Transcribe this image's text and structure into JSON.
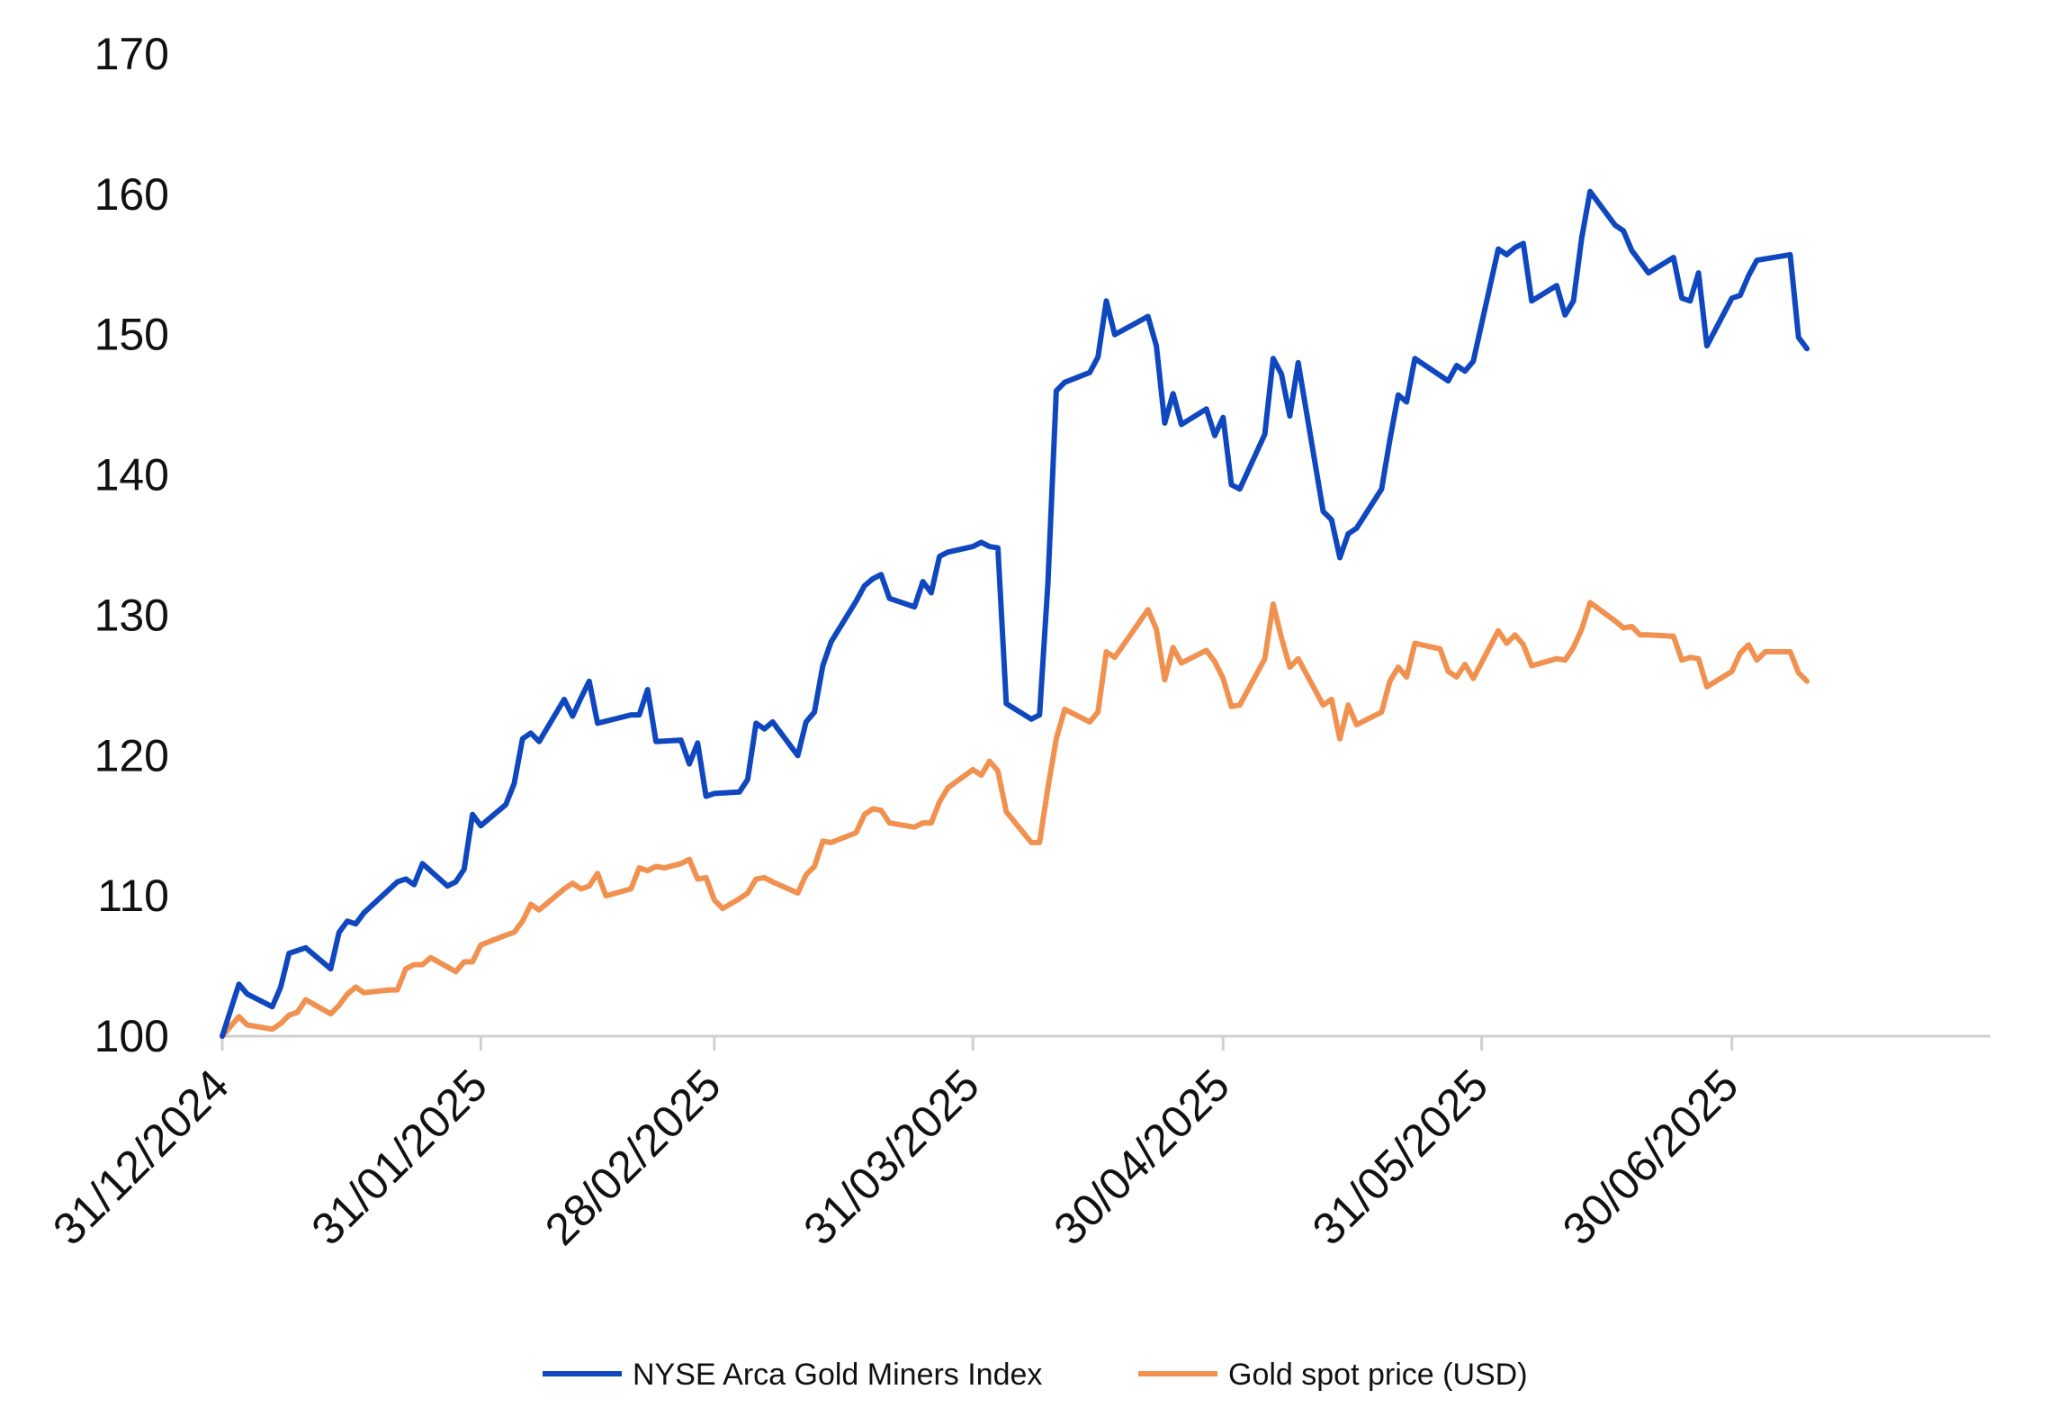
{
  "chart_data": {
    "type": "line",
    "title": "",
    "xlabel": "",
    "ylabel": "",
    "ylim": [
      100,
      170
    ],
    "yticks": [
      100,
      110,
      120,
      130,
      140,
      150,
      160,
      170
    ],
    "xlim": [
      "2024-12-31",
      "2025-07-31"
    ],
    "xtick_labels": [
      "31/12/2024",
      "31/01/2025",
      "28/02/2025",
      "31/03/2025",
      "30/04/2025",
      "31/05/2025",
      "30/06/2025"
    ],
    "xtick_dates": [
      "2024-12-31",
      "2025-01-31",
      "2025-02-28",
      "2025-03-31",
      "2025-04-30",
      "2025-05-31",
      "2025-06-30"
    ],
    "grid": false,
    "legend_position": "bottom",
    "series": [
      {
        "name": "NYSE Arca Gold Miners Index",
        "color": "#0f47bf",
        "points": [
          [
            "2024-12-31",
            100.0
          ],
          [
            "2025-01-02",
            103.7
          ],
          [
            "2025-01-03",
            103.0
          ],
          [
            "2025-01-06",
            102.1
          ],
          [
            "2025-01-07",
            103.5
          ],
          [
            "2025-01-08",
            105.9
          ],
          [
            "2025-01-10",
            106.3
          ],
          [
            "2025-01-13",
            104.8
          ],
          [
            "2025-01-14",
            107.4
          ],
          [
            "2025-01-15",
            108.2
          ],
          [
            "2025-01-16",
            108.0
          ],
          [
            "2025-01-17",
            108.8
          ],
          [
            "2025-01-21",
            111.0
          ],
          [
            "2025-01-22",
            111.2
          ],
          [
            "2025-01-23",
            110.8
          ],
          [
            "2025-01-24",
            112.3
          ],
          [
            "2025-01-27",
            110.7
          ],
          [
            "2025-01-28",
            111.0
          ],
          [
            "2025-01-29",
            111.9
          ],
          [
            "2025-01-30",
            115.8
          ],
          [
            "2025-01-31",
            115.0
          ],
          [
            "2025-02-03",
            116.5
          ],
          [
            "2025-02-04",
            118.0
          ],
          [
            "2025-02-05",
            121.2
          ],
          [
            "2025-02-06",
            121.6
          ],
          [
            "2025-02-07",
            121.0
          ],
          [
            "2025-02-10",
            124.0
          ],
          [
            "2025-02-11",
            122.8
          ],
          [
            "2025-02-12",
            124.1
          ],
          [
            "2025-02-13",
            125.3
          ],
          [
            "2025-02-14",
            122.3
          ],
          [
            "2025-02-18",
            122.9
          ],
          [
            "2025-02-19",
            122.9
          ],
          [
            "2025-02-20",
            124.7
          ],
          [
            "2025-02-21",
            121.0
          ],
          [
            "2025-02-24",
            121.1
          ],
          [
            "2025-02-25",
            119.4
          ],
          [
            "2025-02-26",
            120.9
          ],
          [
            "2025-02-27",
            117.1
          ],
          [
            "2025-02-28",
            117.3
          ],
          [
            "2025-03-03",
            117.4
          ],
          [
            "2025-03-04",
            118.3
          ],
          [
            "2025-03-05",
            122.3
          ],
          [
            "2025-03-06",
            121.9
          ],
          [
            "2025-03-07",
            122.4
          ],
          [
            "2025-03-10",
            120.0
          ],
          [
            "2025-03-11",
            122.4
          ],
          [
            "2025-03-12",
            123.1
          ],
          [
            "2025-03-13",
            126.4
          ],
          [
            "2025-03-14",
            128.1
          ],
          [
            "2025-03-17",
            131.0
          ],
          [
            "2025-03-18",
            132.1
          ],
          [
            "2025-03-19",
            132.6
          ],
          [
            "2025-03-20",
            132.9
          ],
          [
            "2025-03-21",
            131.2
          ],
          [
            "2025-03-24",
            130.6
          ],
          [
            "2025-03-25",
            132.4
          ],
          [
            "2025-03-26",
            131.6
          ],
          [
            "2025-03-27",
            134.2
          ],
          [
            "2025-03-28",
            134.5
          ],
          [
            "2025-03-31",
            134.9
          ],
          [
            "2025-04-01",
            135.2
          ],
          [
            "2025-04-02",
            134.9
          ],
          [
            "2025-04-03",
            134.8
          ],
          [
            "2025-04-04",
            123.7
          ],
          [
            "2025-04-07",
            122.6
          ],
          [
            "2025-04-08",
            122.9
          ],
          [
            "2025-04-09",
            132.3
          ],
          [
            "2025-04-10",
            146.0
          ],
          [
            "2025-04-11",
            146.6
          ],
          [
            "2025-04-14",
            147.3
          ],
          [
            "2025-04-15",
            148.4
          ],
          [
            "2025-04-16",
            152.4
          ],
          [
            "2025-04-17",
            150.0
          ],
          [
            "2025-04-21",
            151.3
          ],
          [
            "2025-04-22",
            149.2
          ],
          [
            "2025-04-23",
            143.7
          ],
          [
            "2025-04-24",
            145.8
          ],
          [
            "2025-04-25",
            143.6
          ],
          [
            "2025-04-28",
            144.7
          ],
          [
            "2025-04-29",
            142.8
          ],
          [
            "2025-04-30",
            144.1
          ],
          [
            "2025-05-01",
            139.3
          ],
          [
            "2025-05-02",
            139.0
          ],
          [
            "2025-05-05",
            142.9
          ],
          [
            "2025-05-06",
            148.3
          ],
          [
            "2025-05-07",
            147.2
          ],
          [
            "2025-05-08",
            144.2
          ],
          [
            "2025-05-09",
            148.0
          ],
          [
            "2025-05-12",
            137.4
          ],
          [
            "2025-05-13",
            136.8
          ],
          [
            "2025-05-14",
            134.1
          ],
          [
            "2025-05-15",
            135.8
          ],
          [
            "2025-05-16",
            136.2
          ],
          [
            "2025-05-19",
            139.0
          ],
          [
            "2025-05-20",
            142.5
          ],
          [
            "2025-05-21",
            145.7
          ],
          [
            "2025-05-22",
            145.2
          ],
          [
            "2025-05-23",
            148.3
          ],
          [
            "2025-05-27",
            146.7
          ],
          [
            "2025-05-28",
            147.8
          ],
          [
            "2025-05-29",
            147.4
          ],
          [
            "2025-05-30",
            148.1
          ],
          [
            "2025-06-02",
            156.1
          ],
          [
            "2025-06-03",
            155.7
          ],
          [
            "2025-06-04",
            156.2
          ],
          [
            "2025-06-05",
            156.5
          ],
          [
            "2025-06-06",
            152.4
          ],
          [
            "2025-06-09",
            153.5
          ],
          [
            "2025-06-10",
            151.4
          ],
          [
            "2025-06-11",
            152.4
          ],
          [
            "2025-06-12",
            156.9
          ],
          [
            "2025-06-13",
            160.2
          ],
          [
            "2025-06-16",
            157.8
          ],
          [
            "2025-06-17",
            157.4
          ],
          [
            "2025-06-18",
            156.0
          ],
          [
            "2025-06-20",
            154.4
          ],
          [
            "2025-06-23",
            155.5
          ],
          [
            "2025-06-24",
            152.6
          ],
          [
            "2025-06-25",
            152.4
          ],
          [
            "2025-06-26",
            154.4
          ],
          [
            "2025-06-27",
            149.2
          ],
          [
            "2025-06-30",
            152.6
          ],
          [
            "2025-07-01",
            152.8
          ],
          [
            "2025-07-02",
            154.2
          ],
          [
            "2025-07-03",
            155.3
          ],
          [
            "2025-07-07",
            155.7
          ],
          [
            "2025-07-08",
            149.8
          ],
          [
            "2025-07-09",
            149.0
          ]
        ]
      },
      {
        "name": "Gold spot price (USD)",
        "color": "#f0914f",
        "points": [
          [
            "2024-12-31",
            100.0
          ],
          [
            "2025-01-02",
            101.4
          ],
          [
            "2025-01-03",
            100.8
          ],
          [
            "2025-01-06",
            100.5
          ],
          [
            "2025-01-07",
            100.9
          ],
          [
            "2025-01-08",
            101.5
          ],
          [
            "2025-01-09",
            101.7
          ],
          [
            "2025-01-10",
            102.6
          ],
          [
            "2025-01-13",
            101.6
          ],
          [
            "2025-01-14",
            102.2
          ],
          [
            "2025-01-15",
            103.0
          ],
          [
            "2025-01-16",
            103.5
          ],
          [
            "2025-01-17",
            103.1
          ],
          [
            "2025-01-20",
            103.3
          ],
          [
            "2025-01-21",
            103.3
          ],
          [
            "2025-01-22",
            104.8
          ],
          [
            "2025-01-23",
            105.1
          ],
          [
            "2025-01-24",
            105.1
          ],
          [
            "2025-01-25",
            105.6
          ],
          [
            "2025-01-28",
            104.6
          ],
          [
            "2025-01-29",
            105.3
          ],
          [
            "2025-01-30",
            105.3
          ],
          [
            "2025-01-31",
            106.5
          ],
          [
            "2025-02-03",
            107.2
          ],
          [
            "2025-02-04",
            107.4
          ],
          [
            "2025-02-05",
            108.2
          ],
          [
            "2025-02-06",
            109.4
          ],
          [
            "2025-02-07",
            109.0
          ],
          [
            "2025-02-10",
            110.5
          ],
          [
            "2025-02-11",
            110.9
          ],
          [
            "2025-02-12",
            110.5
          ],
          [
            "2025-02-13",
            110.7
          ],
          [
            "2025-02-14",
            111.6
          ],
          [
            "2025-02-15",
            110.0
          ],
          [
            "2025-02-18",
            110.5
          ],
          [
            "2025-02-19",
            112.0
          ],
          [
            "2025-02-20",
            111.8
          ],
          [
            "2025-02-21",
            112.1
          ],
          [
            "2025-02-22",
            112.0
          ],
          [
            "2025-02-24",
            112.3
          ],
          [
            "2025-02-25",
            112.6
          ],
          [
            "2025-02-26",
            111.2
          ],
          [
            "2025-02-27",
            111.3
          ],
          [
            "2025-02-28",
            109.7
          ],
          [
            "2025-03-01",
            109.1
          ],
          [
            "2025-03-03",
            109.8
          ],
          [
            "2025-03-04",
            110.2
          ],
          [
            "2025-03-05",
            111.2
          ],
          [
            "2025-03-06",
            111.3
          ],
          [
            "2025-03-07",
            111.0
          ],
          [
            "2025-03-10",
            110.2
          ],
          [
            "2025-03-11",
            111.5
          ],
          [
            "2025-03-12",
            112.1
          ],
          [
            "2025-03-13",
            113.9
          ],
          [
            "2025-03-14",
            113.8
          ],
          [
            "2025-03-17",
            114.5
          ],
          [
            "2025-03-18",
            115.8
          ],
          [
            "2025-03-19",
            116.2
          ],
          [
            "2025-03-20",
            116.1
          ],
          [
            "2025-03-21",
            115.2
          ],
          [
            "2025-03-24",
            114.9
          ],
          [
            "2025-03-25",
            115.2
          ],
          [
            "2025-03-26",
            115.2
          ],
          [
            "2025-03-27",
            116.7
          ],
          [
            "2025-03-28",
            117.7
          ],
          [
            "2025-03-31",
            119.0
          ],
          [
            "2025-04-01",
            118.6
          ],
          [
            "2025-04-02",
            119.6
          ],
          [
            "2025-04-03",
            118.9
          ],
          [
            "2025-04-04",
            116.0
          ],
          [
            "2025-04-07",
            113.8
          ],
          [
            "2025-04-08",
            113.8
          ],
          [
            "2025-04-09",
            117.7
          ],
          [
            "2025-04-10",
            121.2
          ],
          [
            "2025-04-11",
            123.3
          ],
          [
            "2025-04-14",
            122.4
          ],
          [
            "2025-04-15",
            123.1
          ],
          [
            "2025-04-16",
            127.4
          ],
          [
            "2025-04-17",
            127.0
          ],
          [
            "2025-04-21",
            130.4
          ],
          [
            "2025-04-22",
            129.0
          ],
          [
            "2025-04-23",
            125.4
          ],
          [
            "2025-04-24",
            127.7
          ],
          [
            "2025-04-25",
            126.6
          ],
          [
            "2025-04-28",
            127.5
          ],
          [
            "2025-04-29",
            126.7
          ],
          [
            "2025-04-30",
            125.5
          ],
          [
            "2025-05-01",
            123.5
          ],
          [
            "2025-05-02",
            123.6
          ],
          [
            "2025-05-05",
            126.9
          ],
          [
            "2025-05-06",
            130.8
          ],
          [
            "2025-05-07",
            128.4
          ],
          [
            "2025-05-08",
            126.3
          ],
          [
            "2025-05-09",
            126.9
          ],
          [
            "2025-05-12",
            123.6
          ],
          [
            "2025-05-13",
            124.0
          ],
          [
            "2025-05-14",
            121.2
          ],
          [
            "2025-05-15",
            123.6
          ],
          [
            "2025-05-16",
            122.2
          ],
          [
            "2025-05-19",
            123.1
          ],
          [
            "2025-05-20",
            125.3
          ],
          [
            "2025-05-21",
            126.3
          ],
          [
            "2025-05-22",
            125.6
          ],
          [
            "2025-05-23",
            128.0
          ],
          [
            "2025-05-26",
            127.6
          ],
          [
            "2025-05-27",
            126.0
          ],
          [
            "2025-05-28",
            125.6
          ],
          [
            "2025-05-29",
            126.5
          ],
          [
            "2025-05-30",
            125.5
          ],
          [
            "2025-06-02",
            128.9
          ],
          [
            "2025-06-03",
            128.0
          ],
          [
            "2025-06-04",
            128.6
          ],
          [
            "2025-06-05",
            127.9
          ],
          [
            "2025-06-06",
            126.4
          ],
          [
            "2025-06-09",
            126.9
          ],
          [
            "2025-06-10",
            126.8
          ],
          [
            "2025-06-11",
            127.7
          ],
          [
            "2025-06-12",
            129.0
          ],
          [
            "2025-06-13",
            130.9
          ],
          [
            "2025-06-16",
            129.6
          ],
          [
            "2025-06-17",
            129.1
          ],
          [
            "2025-06-18",
            129.2
          ],
          [
            "2025-06-19",
            128.6
          ],
          [
            "2025-06-20",
            128.6
          ],
          [
            "2025-06-23",
            128.5
          ],
          [
            "2025-06-24",
            126.8
          ],
          [
            "2025-06-25",
            127.0
          ],
          [
            "2025-06-26",
            126.9
          ],
          [
            "2025-06-27",
            124.9
          ],
          [
            "2025-06-30",
            126.0
          ],
          [
            "2025-07-01",
            127.3
          ],
          [
            "2025-07-02",
            127.9
          ],
          [
            "2025-07-03",
            126.8
          ],
          [
            "2025-07-04",
            127.4
          ],
          [
            "2025-07-07",
            127.4
          ],
          [
            "2025-07-08",
            125.9
          ],
          [
            "2025-07-09",
            125.3
          ]
        ]
      }
    ]
  }
}
